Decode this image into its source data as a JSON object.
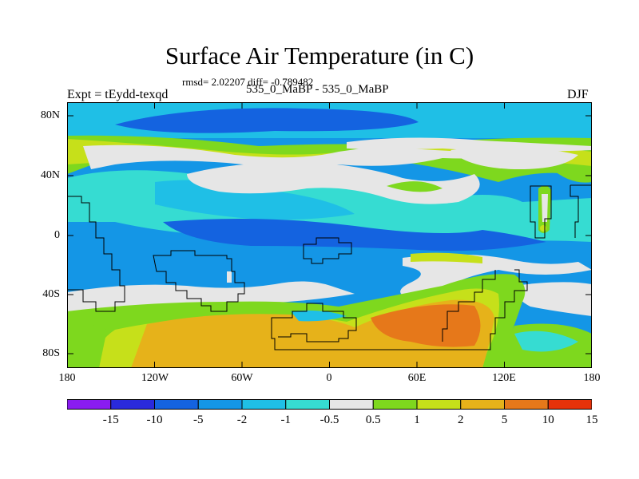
{
  "title": "Surface Air Temperature (in C)",
  "stats_text": "rmsd= 2.02207 diff= -0.789482",
  "experiment_label": "Expt = tEydd-texqd",
  "comparison_label": "535_0_MaBP - 535_0_MaBP",
  "season_label": "DJF",
  "lat_ticks": [
    "80N",
    "40N",
    "0",
    "40S",
    "80S"
  ],
  "lon_ticks": [
    "180",
    "120W",
    "60W",
    "0",
    "60E",
    "120E",
    "180"
  ],
  "colorbar": {
    "labels": [
      "-15",
      "-10",
      "-5",
      "-2",
      "-1",
      "-0.5",
      "0.5",
      "1",
      "2",
      "5",
      "10",
      "15"
    ],
    "colors": [
      "#8a1cf0",
      "#2a2adc",
      "#1463e0",
      "#1496e6",
      "#1fbfe6",
      "#36dcd2",
      "#e6e6e6",
      "#7ed81e",
      "#c6e01a",
      "#e6b21a",
      "#e6781a",
      "#e6320a"
    ]
  }
}
